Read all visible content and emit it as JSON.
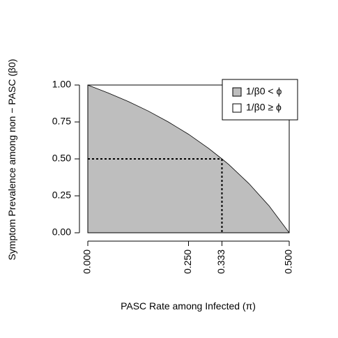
{
  "chart_data": {
    "type": "area",
    "xlabel": "PASC Rate among Infected (π)",
    "ylabel": "Symptom Prevalence among non − PASC (β0)",
    "xlim": [
      0,
      0.5
    ],
    "ylim": [
      0,
      1
    ],
    "x_ticks": [
      0,
      0.25,
      0.333,
      0.5
    ],
    "x_tick_labels": [
      "0.000",
      "0.250",
      "0.333",
      "0.500"
    ],
    "y_ticks": [
      0,
      0.25,
      0.5,
      0.75,
      1
    ],
    "y_tick_labels": [
      "0.00",
      "0.25",
      "0.50",
      "0.75",
      "1.00"
    ],
    "boundary": {
      "x": [
        0,
        0.05,
        0.1,
        0.15,
        0.2,
        0.25,
        0.3,
        0.333,
        0.35,
        0.4,
        0.45,
        0.5
      ],
      "y": [
        1,
        0.947,
        0.889,
        0.824,
        0.75,
        0.667,
        0.571,
        0.5,
        0.462,
        0.333,
        0.182,
        0
      ]
    },
    "reference_point": {
      "x": 0.333,
      "y": 0.5
    },
    "legend": {
      "position": "top-right",
      "entries": [
        {
          "label": "1/β0 < ϕ",
          "fill": "#bebebe"
        },
        {
          "label": "1/β0 ≥ ϕ",
          "fill": "#ffffff"
        }
      ]
    },
    "colors": {
      "shaded": "#bebebe",
      "unshaded": "#ffffff",
      "line": "#000000"
    }
  }
}
